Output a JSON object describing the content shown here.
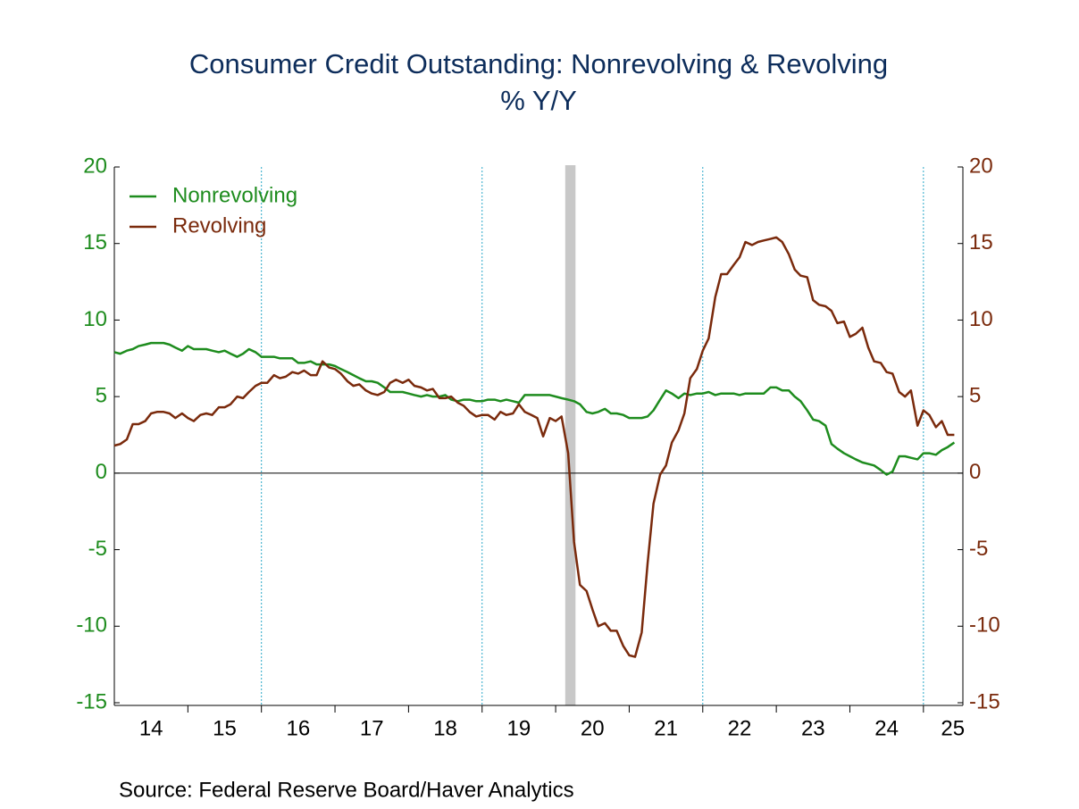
{
  "chart_data": {
    "type": "line",
    "title": "Consumer Credit Outstanding: Nonrevolving & Revolving",
    "subtitle": "% Y/Y",
    "source": "Source:  Federal Reserve Board/Haver Analytics",
    "x": [
      2014,
      2014.08,
      2014.17,
      2014.25,
      2014.33,
      2014.42,
      2014.5,
      2014.58,
      2014.67,
      2014.75,
      2014.83,
      2014.92,
      2015,
      2015.08,
      2015.17,
      2015.25,
      2015.33,
      2015.42,
      2015.5,
      2015.58,
      2015.67,
      2015.75,
      2015.83,
      2015.92,
      2016,
      2016.08,
      2016.17,
      2016.25,
      2016.33,
      2016.42,
      2016.5,
      2016.58,
      2016.67,
      2016.75,
      2016.83,
      2016.92,
      2017,
      2017.08,
      2017.17,
      2017.25,
      2017.33,
      2017.42,
      2017.5,
      2017.58,
      2017.67,
      2017.75,
      2017.83,
      2017.92,
      2018,
      2018.08,
      2018.17,
      2018.25,
      2018.33,
      2018.42,
      2018.5,
      2018.58,
      2018.67,
      2018.75,
      2018.83,
      2018.92,
      2019,
      2019.08,
      2019.17,
      2019.25,
      2019.33,
      2019.42,
      2019.5,
      2019.58,
      2019.67,
      2019.75,
      2019.83,
      2019.92,
      2020,
      2020.08,
      2020.17,
      2020.25,
      2020.33,
      2020.42,
      2020.5,
      2020.58,
      2020.67,
      2020.75,
      2020.83,
      2020.92,
      2021,
      2021.08,
      2021.17,
      2021.25,
      2021.33,
      2021.42,
      2021.5,
      2021.58,
      2021.67,
      2021.75,
      2021.83,
      2021.92,
      2022,
      2022.08,
      2022.17,
      2022.25,
      2022.33,
      2022.42,
      2022.5,
      2022.58,
      2022.67,
      2022.75,
      2022.83,
      2022.92,
      2023,
      2023.08,
      2023.17,
      2023.25,
      2023.33,
      2023.42,
      2023.5,
      2023.58,
      2023.67,
      2023.75,
      2023.83,
      2023.92,
      2024,
      2024.08,
      2024.17,
      2024.25,
      2024.33,
      2024.42,
      2024.5,
      2024.58,
      2024.67,
      2024.75,
      2024.83,
      2024.92,
      2025,
      2025.08,
      2025.17,
      2025.25,
      2025.33,
      2025.42
    ],
    "series": [
      {
        "name": "Nonrevolving",
        "color": "#1e8c1e",
        "axis": "y",
        "values": [
          7.9,
          7.8,
          8.0,
          8.1,
          8.3,
          8.4,
          8.5,
          8.5,
          8.5,
          8.4,
          8.2,
          8.0,
          8.3,
          8.1,
          8.1,
          8.1,
          8.0,
          7.9,
          8.0,
          7.8,
          7.6,
          7.8,
          8.1,
          7.9,
          7.6,
          7.6,
          7.6,
          7.5,
          7.5,
          7.5,
          7.2,
          7.2,
          7.3,
          7.1,
          7.1,
          7.1,
          7.0,
          6.8,
          6.6,
          6.4,
          6.2,
          6.0,
          6.0,
          5.9,
          5.6,
          5.3,
          5.3,
          5.3,
          5.2,
          5.1,
          5.0,
          5.1,
          5.0,
          5.0,
          5.1,
          4.8,
          4.7,
          4.8,
          4.8,
          4.7,
          4.7,
          4.8,
          4.8,
          4.7,
          4.8,
          4.7,
          4.6,
          5.1,
          5.1,
          5.1,
          5.1,
          5.1,
          5.0,
          4.9,
          4.8,
          4.7,
          4.5,
          4.0,
          3.9,
          4.0,
          4.2,
          3.9,
          3.9,
          3.8,
          3.6,
          3.6,
          3.6,
          3.7,
          4.1,
          4.8,
          5.4,
          5.2,
          4.9,
          5.2,
          5.1,
          5.2,
          5.2,
          5.3,
          5.1,
          5.2,
          5.2,
          5.2,
          5.1,
          5.2,
          5.2,
          5.2,
          5.2,
          5.6,
          5.6,
          5.4,
          5.4,
          5.0,
          4.7,
          4.1,
          3.5,
          3.4,
          3.1,
          1.9,
          1.6,
          1.3,
          1.1,
          0.9,
          0.7,
          0.6,
          0.5,
          0.2,
          -0.1,
          0.1,
          1.1,
          1.1,
          1.0,
          0.9,
          1.3,
          1.3,
          1.2,
          1.5,
          1.7,
          2.0
        ]
      },
      {
        "name": "Revolving",
        "color": "#7a2a0c",
        "axis": "y2",
        "values": [
          1.8,
          1.9,
          2.2,
          3.2,
          3.2,
          3.4,
          3.9,
          4.0,
          4.0,
          3.9,
          3.6,
          3.9,
          3.6,
          3.4,
          3.8,
          3.9,
          3.8,
          4.3,
          4.3,
          4.5,
          5.0,
          4.9,
          5.3,
          5.7,
          5.9,
          5.9,
          6.4,
          6.2,
          6.3,
          6.6,
          6.5,
          6.7,
          6.4,
          6.4,
          7.3,
          6.9,
          6.8,
          6.5,
          6.0,
          5.7,
          5.8,
          5.4,
          5.2,
          5.1,
          5.3,
          5.9,
          6.1,
          5.9,
          6.1,
          5.7,
          5.6,
          5.4,
          5.5,
          4.9,
          4.9,
          5.0,
          4.6,
          4.4,
          4.0,
          3.7,
          3.8,
          3.8,
          3.5,
          4.0,
          3.8,
          3.9,
          4.5,
          4.0,
          3.8,
          3.6,
          2.4,
          3.6,
          3.4,
          3.7,
          1.3,
          -4.5,
          -7.3,
          -7.7,
          -8.9,
          -10.0,
          -9.8,
          -10.3,
          -10.3,
          -11.3,
          -11.9,
          -12.0,
          -10.4,
          -5.9,
          -2.0,
          -0.1,
          0.5,
          2.0,
          2.8,
          3.9,
          6.2,
          6.8,
          8.0,
          8.8,
          11.5,
          13.0,
          13.0,
          13.6,
          14.1,
          15.1,
          14.9,
          15.1,
          15.2,
          15.3,
          15.4,
          15.1,
          14.3,
          13.3,
          12.9,
          12.8,
          11.3,
          11.0,
          10.9,
          10.6,
          9.8,
          9.9,
          8.9,
          9.1,
          9.5,
          8.2,
          7.3,
          7.2,
          6.6,
          6.5,
          5.3,
          5.0,
          5.4,
          3.1,
          4.1,
          3.8,
          3.0,
          3.4,
          2.5,
          2.5
        ]
      }
    ],
    "xlim": [
      2014,
      2025.5
    ],
    "xticks": [
      {
        "value": 2014.5,
        "label": "14"
      },
      {
        "value": 2015.5,
        "label": "15"
      },
      {
        "value": 2016.5,
        "label": "16"
      },
      {
        "value": 2017.5,
        "label": "17"
      },
      {
        "value": 2018.5,
        "label": "18"
      },
      {
        "value": 2019.5,
        "label": "19"
      },
      {
        "value": 2020.5,
        "label": "20"
      },
      {
        "value": 2021.5,
        "label": "21"
      },
      {
        "value": 2022.5,
        "label": "22"
      },
      {
        "value": 2023.5,
        "label": "23"
      },
      {
        "value": 2024.5,
        "label": "24"
      },
      {
        "value": 2025.4,
        "label": "25"
      }
    ],
    "xtick_marks": [
      2015,
      2016,
      2017,
      2018,
      2019,
      2020,
      2021,
      2022,
      2023,
      2024,
      2025
    ],
    "xgrid": [
      2016,
      2019,
      2022,
      2025
    ],
    "ylim": [
      -15,
      20
    ],
    "yticks": [
      20,
      15,
      10,
      5,
      0,
      -5,
      -10,
      -15
    ],
    "y2lim": [
      -15,
      20
    ],
    "y2ticks": [
      20,
      15,
      10,
      5,
      0,
      -5,
      -10,
      -15
    ],
    "shaded_ranges": [
      [
        2020.13,
        2020.27
      ]
    ],
    "legend": "top-left"
  }
}
